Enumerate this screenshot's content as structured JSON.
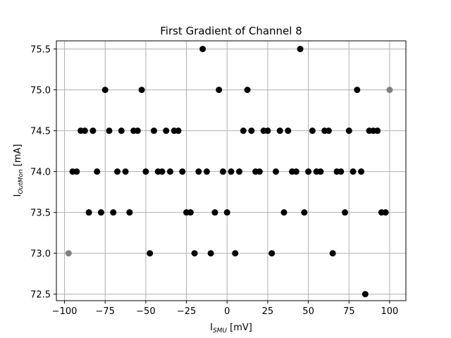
{
  "chart_data": {
    "type": "scatter",
    "title": "First Gradient of Channel 8",
    "xlabel": {
      "main": "I",
      "sub": "SMU",
      "unit": " [mV]"
    },
    "ylabel": {
      "main": "I",
      "sub": "OutMon",
      "unit": " [mA]"
    },
    "xlim": [
      -105,
      110
    ],
    "ylim": [
      72.42,
      75.6
    ],
    "xticks": [
      -100,
      -75,
      -50,
      -25,
      0,
      25,
      50,
      75,
      100
    ],
    "yticks": [
      72.5,
      73.0,
      73.5,
      74.0,
      74.5,
      75.0,
      75.5
    ],
    "grid": true,
    "point_color": "#000000",
    "edge_point_color": "#808080",
    "edge_points": [
      {
        "x": -97.5,
        "y": 73.0
      },
      {
        "x": 100,
        "y": 75.0
      }
    ],
    "points": [
      {
        "x": -95,
        "y": 74.0
      },
      {
        "x": -92.5,
        "y": 74.0
      },
      {
        "x": -90,
        "y": 74.5
      },
      {
        "x": -87.5,
        "y": 74.5
      },
      {
        "x": -85,
        "y": 73.5
      },
      {
        "x": -82.5,
        "y": 74.5
      },
      {
        "x": -80,
        "y": 74.0
      },
      {
        "x": -77.5,
        "y": 73.5
      },
      {
        "x": -75,
        "y": 75.0
      },
      {
        "x": -72.5,
        "y": 74.5
      },
      {
        "x": -70,
        "y": 73.5
      },
      {
        "x": -67.5,
        "y": 74.0
      },
      {
        "x": -65,
        "y": 74.5
      },
      {
        "x": -62.5,
        "y": 74.0
      },
      {
        "x": -60,
        "y": 73.5
      },
      {
        "x": -57.5,
        "y": 74.5
      },
      {
        "x": -55,
        "y": 74.5
      },
      {
        "x": -52.5,
        "y": 75.0
      },
      {
        "x": -50,
        "y": 74.0
      },
      {
        "x": -47.5,
        "y": 73.0
      },
      {
        "x": -45,
        "y": 74.5
      },
      {
        "x": -42.5,
        "y": 74.0
      },
      {
        "x": -40,
        "y": 74.0
      },
      {
        "x": -37.5,
        "y": 74.5
      },
      {
        "x": -35,
        "y": 74.0
      },
      {
        "x": -32.5,
        "y": 74.5
      },
      {
        "x": -30,
        "y": 74.5
      },
      {
        "x": -27.5,
        "y": 74.0
      },
      {
        "x": -25,
        "y": 73.5
      },
      {
        "x": -22.5,
        "y": 73.5
      },
      {
        "x": -20,
        "y": 73.0
      },
      {
        "x": -17.5,
        "y": 74.0
      },
      {
        "x": -15,
        "y": 75.5
      },
      {
        "x": -12.5,
        "y": 74.0
      },
      {
        "x": -10,
        "y": 73.0
      },
      {
        "x": -7.5,
        "y": 73.5
      },
      {
        "x": -5,
        "y": 75.0
      },
      {
        "x": -2.5,
        "y": 74.0
      },
      {
        "x": 0,
        "y": 73.5
      },
      {
        "x": 2.5,
        "y": 74.0
      },
      {
        "x": 5,
        "y": 73.0
      },
      {
        "x": 7.5,
        "y": 74.0
      },
      {
        "x": 10,
        "y": 74.5
      },
      {
        "x": 12.5,
        "y": 75.0
      },
      {
        "x": 15,
        "y": 74.5
      },
      {
        "x": 17.5,
        "y": 74.0
      },
      {
        "x": 20,
        "y": 74.0
      },
      {
        "x": 22.5,
        "y": 74.5
      },
      {
        "x": 25,
        "y": 74.5
      },
      {
        "x": 27.5,
        "y": 73.0
      },
      {
        "x": 30,
        "y": 74.0
      },
      {
        "x": 32.5,
        "y": 74.5
      },
      {
        "x": 35,
        "y": 73.5
      },
      {
        "x": 37.5,
        "y": 74.5
      },
      {
        "x": 40,
        "y": 74.0
      },
      {
        "x": 42.5,
        "y": 74.0
      },
      {
        "x": 45,
        "y": 75.5
      },
      {
        "x": 47.5,
        "y": 73.5
      },
      {
        "x": 50,
        "y": 74.0
      },
      {
        "x": 52.5,
        "y": 74.5
      },
      {
        "x": 55,
        "y": 74.0
      },
      {
        "x": 57.5,
        "y": 74.0
      },
      {
        "x": 60,
        "y": 74.5
      },
      {
        "x": 62.5,
        "y": 74.5
      },
      {
        "x": 65,
        "y": 73.0
      },
      {
        "x": 67.5,
        "y": 74.0
      },
      {
        "x": 70,
        "y": 74.0
      },
      {
        "x": 72.5,
        "y": 73.5
      },
      {
        "x": 75,
        "y": 74.5
      },
      {
        "x": 77.5,
        "y": 74.0
      },
      {
        "x": 80,
        "y": 75.0
      },
      {
        "x": 82.5,
        "y": 74.0
      },
      {
        "x": 85,
        "y": 72.5
      },
      {
        "x": 87.5,
        "y": 74.5
      },
      {
        "x": 90,
        "y": 74.5
      },
      {
        "x": 92.5,
        "y": 74.5
      },
      {
        "x": 95,
        "y": 73.5
      },
      {
        "x": 97.5,
        "y": 73.5
      }
    ]
  }
}
